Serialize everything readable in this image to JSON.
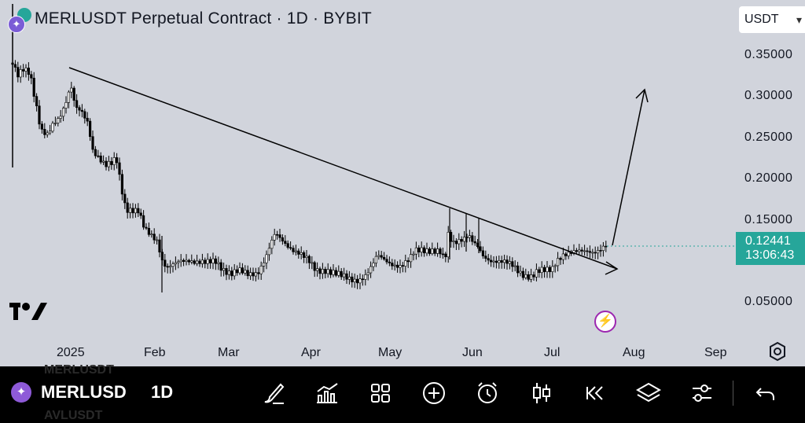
{
  "chart": {
    "title": "MERLUSDT Perpetual Contract · 1D · BYBIT",
    "currency": "USDT",
    "price_axis": [
      "0.35000",
      "0.30000",
      "0.25000",
      "0.20000",
      "0.15000",
      "0.05000"
    ],
    "last_price": "0.12441",
    "countdown": "13:06:43",
    "date_axis": [
      "2025",
      "Feb",
      "Mar",
      "Apr",
      "May",
      "Jun",
      "Jul",
      "Aug",
      "Sep"
    ],
    "colors": {
      "background": "#d1d4dc",
      "accent": "#26a69a",
      "candle": "#000000"
    },
    "icons": [
      "tradingview-logo",
      "flash-icon",
      "settings-icon"
    ]
  },
  "toolbar": {
    "symbol": "MERLUSD",
    "interval": "1D",
    "ghost_above": "MERLUSDT",
    "ghost_below": "AVLUSDT",
    "icons": [
      "draw-brush-icon",
      "indicators-icon",
      "layouts-icon",
      "add-icon",
      "alert-clock-icon",
      "chart-type-candles-icon",
      "replay-icon",
      "layers-icon",
      "settings-sliders-icon",
      "undo-icon"
    ]
  }
}
